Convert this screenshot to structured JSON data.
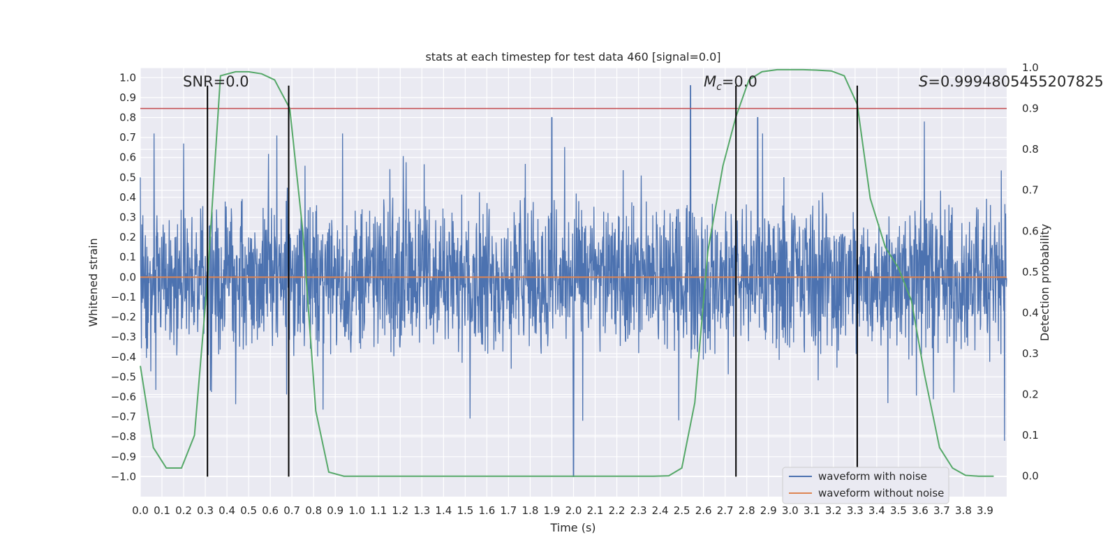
{
  "chart_data": {
    "type": "line",
    "title": "stats at each timestep for test data 460 [signal=0.0]",
    "xlabel": "Time (s)",
    "ylabel": "Whitened strain",
    "y2label": "Detection probability",
    "xlim": [
      0.0,
      4.0
    ],
    "ylim": [
      -1.1,
      1.05
    ],
    "y2lim": [
      -0.05,
      1.0
    ],
    "x_ticks": [
      "0.0",
      "0.1",
      "0.2",
      "0.3",
      "0.4",
      "0.5",
      "0.6",
      "0.7",
      "0.8",
      "0.9",
      "1.0",
      "1.1",
      "1.2",
      "1.3",
      "1.4",
      "1.5",
      "1.6",
      "1.7",
      "1.8",
      "1.9",
      "2.0",
      "2.1",
      "2.2",
      "2.3",
      "2.4",
      "2.5",
      "2.6",
      "2.7",
      "2.8",
      "2.9",
      "3.0",
      "3.1",
      "3.2",
      "3.3",
      "3.4",
      "3.5",
      "3.6",
      "3.7",
      "3.8",
      "3.9"
    ],
    "y_ticks": [
      "1.0",
      "0.9",
      "0.8",
      "0.7",
      "0.6",
      "0.5",
      "0.4",
      "0.3",
      "0.2",
      "0.1",
      "0.0",
      "−0.1",
      "−0.2",
      "−0.3",
      "−0.4",
      "−0.5",
      "−0.6",
      "−0.7",
      "−0.8",
      "−0.9",
      "−1.0"
    ],
    "y2_ticks": [
      "1.0",
      "0.9",
      "0.8",
      "0.7",
      "0.6",
      "0.5",
      "0.4",
      "0.3",
      "0.2",
      "0.1",
      "0.0"
    ],
    "grid": true,
    "legend": "lower-right",
    "series": [
      {
        "name": "waveform with noise",
        "color": "#4c72b0",
        "axis": "left",
        "description": "dense noise trace, approximate amplitude range -1.0 to 0.96",
        "approx_peaks": [
          [
            0.0,
            0.5
          ],
          [
            0.2,
            0.67
          ],
          [
            0.63,
            0.71
          ],
          [
            1.9,
            0.8
          ],
          [
            2.0,
            -1.0
          ],
          [
            2.54,
            0.96
          ],
          [
            2.85,
            0.8
          ],
          [
            3.62,
            0.78
          ],
          [
            3.99,
            -0.82
          ]
        ]
      },
      {
        "name": "waveform without noise",
        "color": "#dd8452",
        "axis": "left",
        "x": [
          0.0,
          4.0
        ],
        "y": [
          0.0,
          0.0
        ]
      },
      {
        "color": "#55a868",
        "axis": "right",
        "x": [
          0.0,
          0.06,
          0.12,
          0.19,
          0.25,
          0.31,
          0.37,
          0.44,
          0.5,
          0.56,
          0.62,
          0.69,
          0.75,
          0.81,
          0.87,
          0.94,
          1.0,
          1.5,
          2.0,
          2.37,
          2.44,
          2.5,
          2.56,
          2.62,
          2.69,
          2.75,
          2.81,
          2.87,
          2.94,
          3.0,
          3.06,
          3.12,
          3.19,
          3.25,
          3.31,
          3.37,
          3.44,
          3.5,
          3.56,
          3.62,
          3.69,
          3.75,
          3.81,
          3.87,
          3.94
        ],
        "y": [
          0.27,
          0.07,
          0.02,
          0.02,
          0.1,
          0.48,
          0.98,
          0.99,
          0.99,
          0.985,
          0.97,
          0.9,
          0.6,
          0.16,
          0.01,
          0.0,
          0.0,
          0.0,
          0.0,
          0.0,
          0.001,
          0.02,
          0.18,
          0.55,
          0.76,
          0.88,
          0.97,
          0.99,
          0.995,
          0.995,
          0.995,
          0.994,
          0.992,
          0.98,
          0.91,
          0.68,
          0.56,
          0.51,
          0.43,
          0.25,
          0.07,
          0.02,
          0.002,
          0.0,
          0.0
        ]
      }
    ],
    "threshold_line": {
      "color": "#c44e52",
      "axis": "right",
      "value": 0.9
    },
    "vertical_lines": {
      "color": "#000000",
      "x": [
        0.31,
        0.685,
        2.75,
        3.31
      ],
      "y_range": [
        -1.0,
        0.96
      ]
    },
    "annotations": [
      {
        "text": "SNR=0.0",
        "x": 0.2,
        "y": 0.96
      },
      {
        "text": "Mc=0.0",
        "x": 2.6,
        "y": 0.96
      },
      {
        "text": "S=0.9994805455207825",
        "x": 3.6,
        "y": 0.96
      }
    ]
  }
}
